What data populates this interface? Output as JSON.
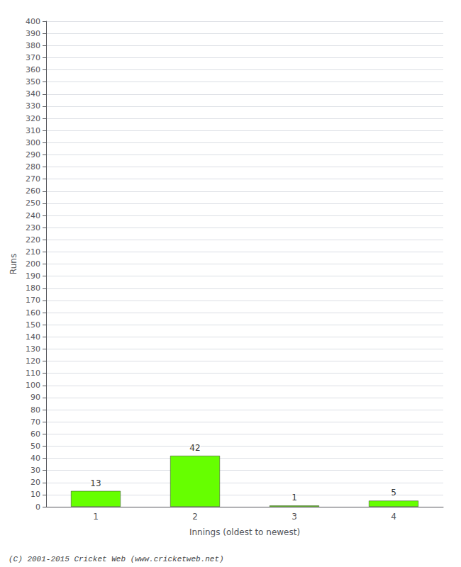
{
  "chart_data": {
    "type": "bar",
    "categories": [
      "1",
      "2",
      "3",
      "4"
    ],
    "values": [
      13,
      42,
      1,
      5
    ],
    "color": "#66ff00",
    "xlabel": "Innings (oldest to newest)",
    "ylabel": "Runs",
    "ylim": [
      0,
      400
    ],
    "yticks": [
      0,
      10,
      20,
      30,
      40,
      50,
      60,
      70,
      80,
      90,
      100,
      110,
      120,
      130,
      140,
      150,
      160,
      170,
      180,
      190,
      200,
      210,
      220,
      230,
      240,
      250,
      260,
      270,
      280,
      290,
      300,
      310,
      320,
      330,
      340,
      350,
      360,
      370,
      380,
      390,
      400
    ],
    "grid": true,
    "data_labels": true,
    "annotations": [
      "(C) 2001-2015 Cricket Web (www.cricketweb.net)"
    ]
  }
}
